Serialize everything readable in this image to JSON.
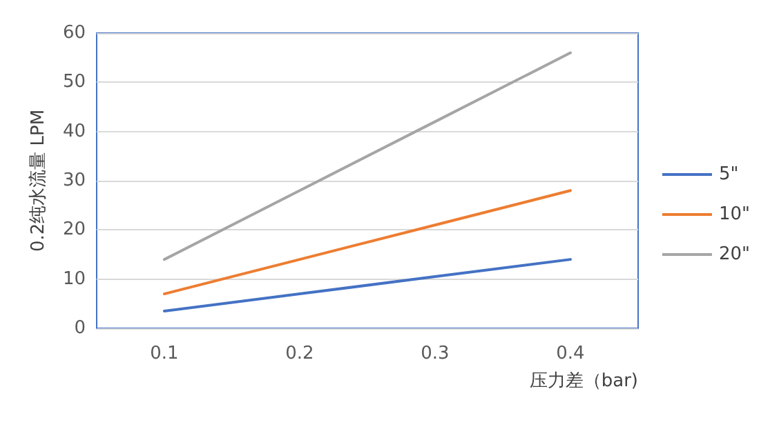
{
  "chart_data": {
    "type": "line",
    "xlabel": "压力差（bar)",
    "ylabel": "0.2纯水流量 LPM",
    "categories": [
      "0.1",
      "0.2",
      "0.3",
      "0.4"
    ],
    "series": [
      {
        "name": "5\"",
        "color": "#4472c4",
        "values": [
          3.5,
          7,
          10.5,
          14
        ]
      },
      {
        "name": "10\"",
        "color": "#ed7d31",
        "values": [
          7,
          14,
          21,
          28
        ]
      },
      {
        "name": "20\"",
        "color": "#a5a5a5",
        "values": [
          14,
          28,
          42,
          56
        ]
      }
    ],
    "ylim": [
      0,
      60
    ],
    "yticks": [
      0,
      10,
      20,
      30,
      40,
      50,
      60
    ],
    "grid": "y",
    "legend": "right",
    "marker": "none",
    "line_style": "solid"
  }
}
